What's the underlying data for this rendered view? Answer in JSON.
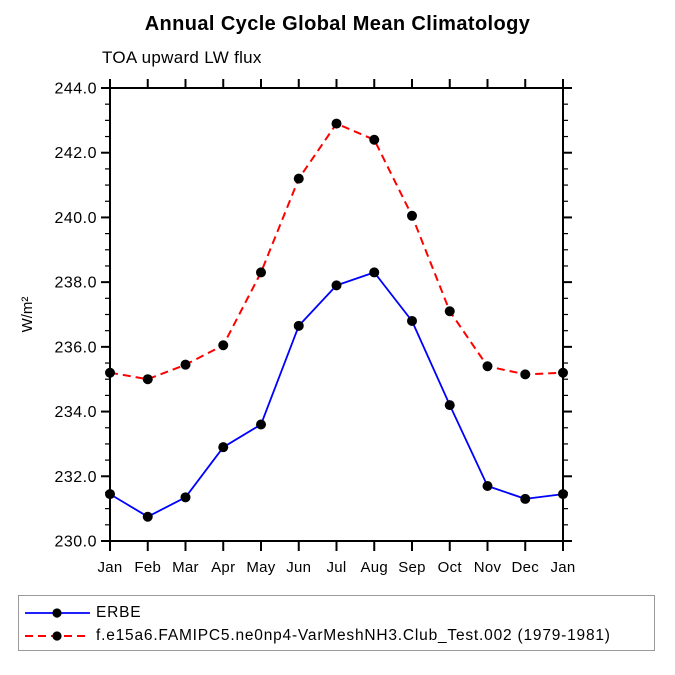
{
  "chart_data": {
    "type": "line",
    "title": "Annual Cycle Global Mean Climatology",
    "subtitle": "TOA upward LW flux",
    "ylabel": "W/m²",
    "xlabel": "",
    "x_categories": [
      "Jan",
      "Feb",
      "Mar",
      "Apr",
      "May",
      "Jun",
      "Jul",
      "Aug",
      "Sep",
      "Oct",
      "Nov",
      "Dec",
      "Jan"
    ],
    "ylim": [
      230.0,
      244.0
    ],
    "ytick_step": 2.0,
    "ytick_minor_step": 0.5,
    "ytick_labels": [
      "230.0",
      "232.0",
      "234.0",
      "236.0",
      "238.0",
      "240.0",
      "242.0",
      "244.0"
    ],
    "grid": false,
    "frame": "box-with-outward-ticks",
    "legend_position": "bottom-left-box",
    "marker": {
      "shape": "circle",
      "color": "#000000",
      "radius": 5
    },
    "series": [
      {
        "name": "ERBE",
        "color": "#0000ff",
        "line_style": "solid",
        "values": [
          231.45,
          230.75,
          231.35,
          232.9,
          233.6,
          236.65,
          237.9,
          238.3,
          236.8,
          234.2,
          231.7,
          231.3,
          231.45
        ]
      },
      {
        "name": "f.e15a6.FAMIPC5.ne0np4-VarMeshNH3.Club_Test.002 (1979-1981)",
        "color": "#ff0000",
        "line_style": "dashed",
        "values": [
          235.2,
          235.0,
          235.45,
          236.05,
          238.3,
          241.2,
          242.9,
          242.4,
          240.05,
          237.1,
          235.4,
          235.15,
          235.2
        ]
      }
    ]
  }
}
